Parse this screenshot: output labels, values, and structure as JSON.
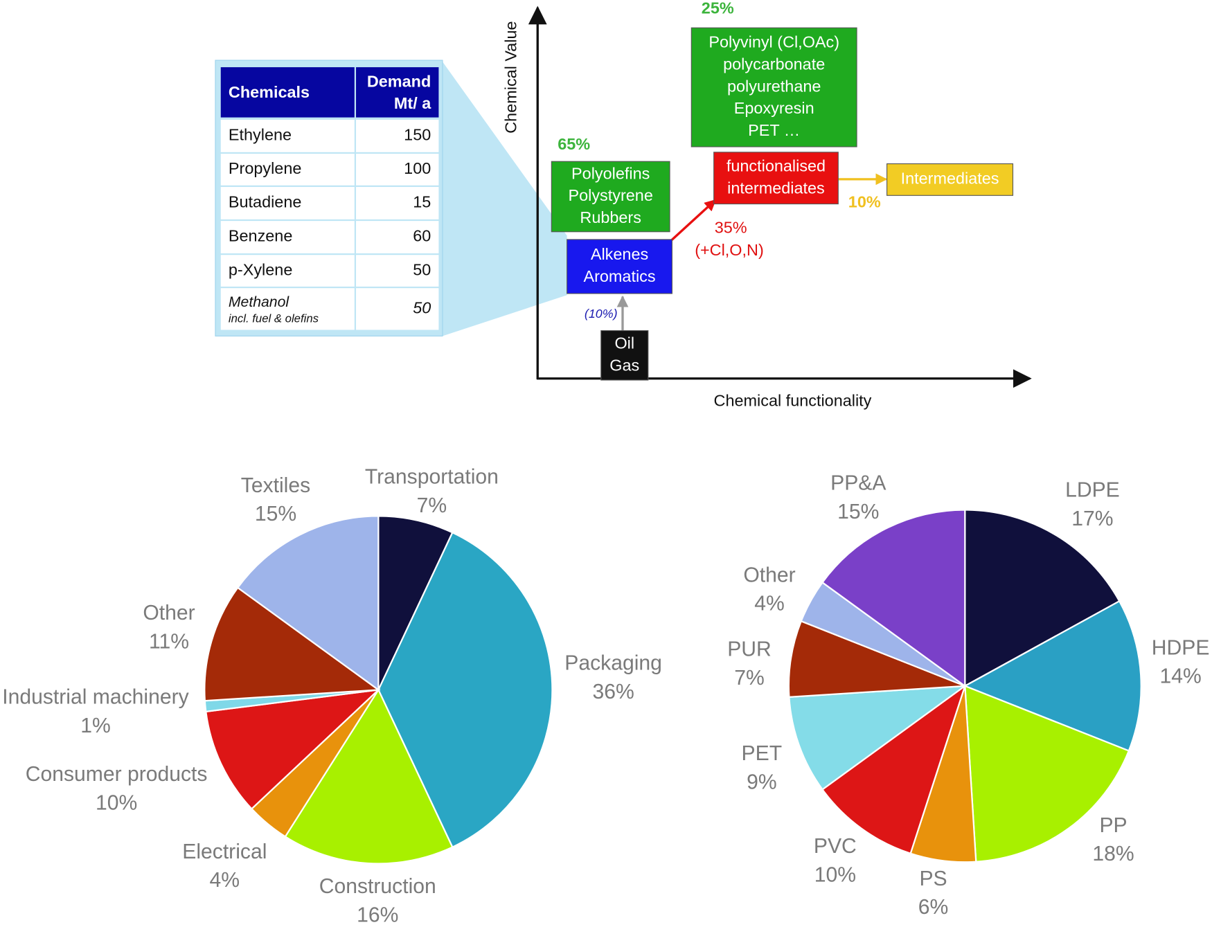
{
  "table": {
    "header": {
      "chemical": "Chemicals",
      "demand": [
        "Demand",
        "Mt/ a"
      ]
    },
    "rows": [
      {
        "name": "Ethylene",
        "demand": "150"
      },
      {
        "name": "Propylene",
        "demand": "100"
      },
      {
        "name": "Butadiene",
        "demand": "15"
      },
      {
        "name": "Benzene",
        "demand": "60"
      },
      {
        "name": "p-Xylene",
        "demand": "50"
      },
      {
        "name": "Methanol",
        "note": "incl. fuel & olefins",
        "demand": "50"
      }
    ]
  },
  "diagram": {
    "y_axis_title": "Chemical Value",
    "x_axis_title": "Chemical functionality",
    "nodes": [
      {
        "lines": [
          "Polyvinyl (Cl,OAc)",
          "polycarbonate",
          "polyurethane",
          "Epoxyresin",
          "PET …"
        ]
      },
      {
        "lines": [
          "Polyolefins",
          "Polystyrene",
          "Rubbers"
        ]
      },
      {
        "lines": [
          "functionalised",
          "intermediates"
        ]
      },
      {
        "lines": [
          "Intermediates"
        ]
      },
      {
        "lines": [
          "Alkenes",
          "Aromatics"
        ]
      },
      {
        "lines": [
          "Oil",
          "Gas"
        ]
      }
    ],
    "labels": [
      "25%",
      "65%",
      "10%",
      "35%",
      "(+Cl,O,N)",
      "(10%)"
    ]
  },
  "chart_data": [
    {
      "type": "pie",
      "categories": [
        "Transportation",
        "Packaging",
        "Construction",
        "Electrical",
        "Consumer products",
        "Industrial machinery",
        "Other",
        "Textiles"
      ],
      "values": [
        7,
        36,
        16,
        4,
        10,
        1,
        11,
        15
      ],
      "value_labels": [
        "7%",
        "36%",
        "16%",
        "4%",
        "10%",
        "1%",
        "11%",
        "15%"
      ],
      "colors": [
        "#10103c",
        "#2aa6c4",
        "#a8f000",
        "#e8920c",
        "#dd1616",
        "#7fd8e8",
        "#a42a08",
        "#9eb4ea"
      ]
    },
    {
      "type": "pie",
      "categories": [
        "LDPE",
        "HDPE",
        "PP",
        "PS",
        "PVC",
        "PET",
        "PUR",
        "Other",
        "PP&A"
      ],
      "values": [
        17,
        14,
        18,
        6,
        10,
        9,
        7,
        4,
        15
      ],
      "value_labels": [
        "17%",
        "14%",
        "18%",
        "6%",
        "10%",
        "9%",
        "7%",
        "4%",
        "15%"
      ],
      "colors": [
        "#10103c",
        "#2aa0c4",
        "#a8f000",
        "#e8920c",
        "#dd1616",
        "#84dce8",
        "#a42a08",
        "#9eb4ea",
        "#7a40c8"
      ]
    }
  ]
}
